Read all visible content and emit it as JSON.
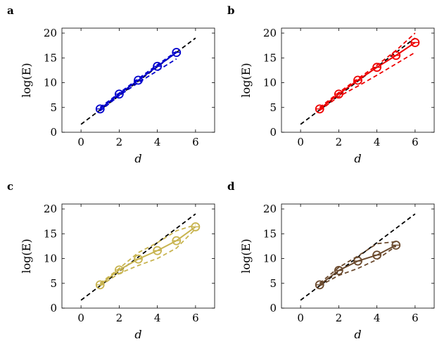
{
  "chart_data": [
    {
      "panel": "a",
      "type": "line",
      "color": "#0000cc",
      "xlabel": "d",
      "ylabel": "log(E)",
      "xticks": [
        "0",
        "2",
        "4",
        "6"
      ],
      "yticks": [
        "0",
        "5",
        "10",
        "15",
        "20"
      ],
      "xlim": [
        -1,
        7
      ],
      "ylim": [
        0,
        21
      ],
      "reference_line": {
        "x": [
          0,
          6
        ],
        "y": [
          1.6,
          19.0
        ],
        "color": "#000000",
        "style": "dashed"
      },
      "series": [
        {
          "style": "solid-markers",
          "x": [
            1,
            2,
            3,
            4,
            5
          ],
          "y": [
            4.7,
            7.7,
            10.5,
            13.3,
            16.1
          ]
        },
        {
          "style": "dashed",
          "x": [
            1,
            2,
            3,
            4,
            5
          ],
          "y": [
            4.3,
            7.4,
            10.0,
            12.4,
            14.8
          ]
        },
        {
          "style": "dashed",
          "x": [
            1,
            2,
            3,
            4,
            5
          ],
          "y": [
            5.0,
            7.9,
            10.8,
            13.6,
            16.3
          ]
        }
      ]
    },
    {
      "panel": "b",
      "type": "line",
      "color": "#ee0000",
      "xlabel": "d",
      "ylabel": "log(E)",
      "xticks": [
        "0",
        "2",
        "4",
        "6"
      ],
      "yticks": [
        "0",
        "5",
        "10",
        "15",
        "20"
      ],
      "xlim": [
        -1,
        7
      ],
      "ylim": [
        0,
        21
      ],
      "reference_line": {
        "x": [
          0,
          6
        ],
        "y": [
          1.6,
          19.0
        ],
        "color": "#000000",
        "style": "dashed"
      },
      "series": [
        {
          "style": "solid-markers",
          "x": [
            1,
            2,
            3,
            4,
            5,
            6
          ],
          "y": [
            4.7,
            7.7,
            10.5,
            13.1,
            15.5,
            18.1
          ]
        },
        {
          "style": "dashed",
          "x": [
            1,
            2,
            3,
            4,
            5,
            6
          ],
          "y": [
            4.4,
            7.2,
            9.3,
            11.5,
            13.8,
            16.1
          ]
        },
        {
          "style": "dashed",
          "x": [
            1,
            2,
            3,
            4,
            5,
            6
          ],
          "y": [
            5.0,
            8.0,
            10.8,
            13.5,
            16.5,
            20.0
          ]
        }
      ]
    },
    {
      "panel": "c",
      "type": "line",
      "color": "#c8b450",
      "xlabel": "d",
      "ylabel": "log(E)",
      "xticks": [
        "0",
        "2",
        "4",
        "6"
      ],
      "yticks": [
        "0",
        "5",
        "10",
        "15",
        "20"
      ],
      "xlim": [
        -1,
        7
      ],
      "ylim": [
        0,
        21
      ],
      "reference_line": {
        "x": [
          0,
          6
        ],
        "y": [
          1.6,
          19.0
        ],
        "color": "#000000",
        "style": "dashed"
      },
      "series": [
        {
          "style": "solid-markers",
          "x": [
            1,
            2,
            3,
            4,
            5,
            6
          ],
          "y": [
            4.7,
            7.7,
            9.9,
            11.6,
            13.6,
            16.4
          ]
        },
        {
          "style": "dashed",
          "x": [
            1,
            2,
            3,
            4,
            5,
            6
          ],
          "y": [
            4.5,
            7.0,
            8.6,
            10.0,
            12.1,
            16.0
          ]
        },
        {
          "style": "dashed",
          "x": [
            1,
            2,
            3,
            4,
            5,
            6
          ],
          "y": [
            5.0,
            8.0,
            11.2,
            13.2,
            15.6,
            16.8
          ]
        }
      ]
    },
    {
      "panel": "d",
      "type": "line",
      "color": "#6b4a2e",
      "xlabel": "d",
      "ylabel": "log(E)",
      "xticks": [
        "0",
        "2",
        "4",
        "6"
      ],
      "yticks": [
        "0",
        "5",
        "10",
        "15",
        "20"
      ],
      "xlim": [
        -1,
        7
      ],
      "ylim": [
        0,
        21
      ],
      "reference_line": {
        "x": [
          0,
          6
        ],
        "y": [
          1.6,
          19.0
        ],
        "color": "#000000",
        "style": "dashed"
      },
      "series": [
        {
          "style": "solid-markers",
          "x": [
            1,
            2,
            3,
            4,
            5
          ],
          "y": [
            4.7,
            7.6,
            9.5,
            10.7,
            12.7
          ]
        },
        {
          "style": "dashed",
          "x": [
            1,
            2,
            3,
            4,
            5
          ],
          "y": [
            4.5,
            6.6,
            8.0,
            9.8,
            12.5
          ]
        },
        {
          "style": "dashed",
          "x": [
            1,
            2,
            3,
            4,
            5
          ],
          "y": [
            5.0,
            8.2,
            10.5,
            13.0,
            13.4
          ]
        }
      ]
    }
  ]
}
